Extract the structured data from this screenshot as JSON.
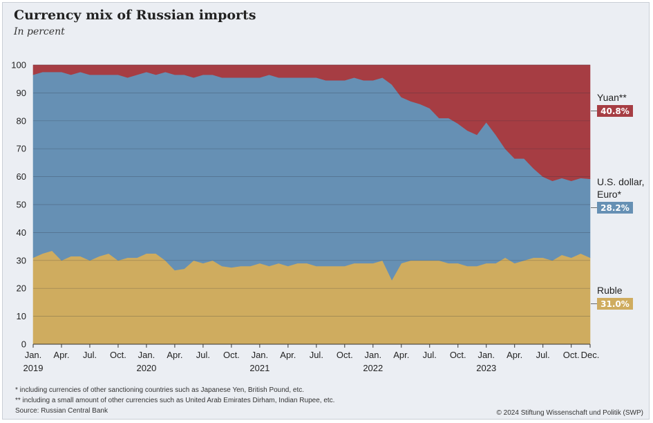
{
  "header": {
    "title": "Currency mix of Russian imports",
    "subtitle": "In percent"
  },
  "footer": {
    "note1": "*   including currencies of other sanctioning countries such as Japanese Yen, British Pound, etc.",
    "note2": "**  including a small amount of other currencies such as United Arab Emirates Dirham, Indian Rupee, etc.",
    "source": "Source: Russian Central Bank",
    "copyright": "© 2024 Stiftung Wissenschaft und Politik (SWP)"
  },
  "colors": {
    "ruble": "#cfac5f",
    "usd_euro": "#6690b4",
    "yuan": "#a63d43",
    "background": "#ebeef3"
  },
  "chart_data": {
    "type": "area",
    "stacked": true,
    "ylim": [
      0,
      100
    ],
    "yticks": [
      0,
      10,
      20,
      30,
      40,
      50,
      60,
      70,
      80,
      90,
      100
    ],
    "grid": true,
    "x_start": "2019-01",
    "x_end": "2023-12",
    "x_tick_labels": [
      {
        "month": "2019-01",
        "label": "Jan.",
        "year": "2019"
      },
      {
        "month": "2019-04",
        "label": "Apr."
      },
      {
        "month": "2019-07",
        "label": "Jul."
      },
      {
        "month": "2019-10",
        "label": "Oct."
      },
      {
        "month": "2020-01",
        "label": "Jan.",
        "year": "2020"
      },
      {
        "month": "2020-04",
        "label": "Apr."
      },
      {
        "month": "2020-07",
        "label": "Jul."
      },
      {
        "month": "2020-10",
        "label": "Oct."
      },
      {
        "month": "2021-01",
        "label": "Jan.",
        "year": "2021"
      },
      {
        "month": "2021-04",
        "label": "Apr."
      },
      {
        "month": "2021-07",
        "label": "Jul."
      },
      {
        "month": "2021-10",
        "label": "Oct."
      },
      {
        "month": "2022-01",
        "label": "Jan.",
        "year": "2022"
      },
      {
        "month": "2022-04",
        "label": "Apr."
      },
      {
        "month": "2022-07",
        "label": "Jul."
      },
      {
        "month": "2022-10",
        "label": "Oct."
      },
      {
        "month": "2023-01",
        "label": "Jan.",
        "year": "2023"
      },
      {
        "month": "2023-04",
        "label": "Apr."
      },
      {
        "month": "2023-07",
        "label": "Jul."
      },
      {
        "month": "2023-10",
        "label": "Oct."
      },
      {
        "month": "2023-12",
        "label": "Dec."
      }
    ],
    "series": [
      {
        "key": "ruble",
        "name": "Ruble",
        "end_label": "31.0%",
        "cumulative_top": [
          31,
          32.5,
          33.5,
          30,
          31.5,
          31.5,
          30,
          31.5,
          32.5,
          30,
          31,
          31,
          32.5,
          32.5,
          30,
          26.5,
          27,
          30,
          29,
          30,
          28,
          27.5,
          28,
          28,
          29,
          28,
          29,
          28,
          29,
          29,
          28,
          28,
          28,
          28,
          29,
          29,
          29,
          30,
          23,
          29,
          30,
          30,
          30,
          30,
          29,
          29,
          28,
          28,
          29,
          29,
          31,
          29,
          30,
          31,
          31,
          30,
          32,
          31,
          32.5,
          31
        ]
      },
      {
        "key": "usd_euro",
        "name": "U.S. dollar, Euro*",
        "name_lines": [
          "U.S. dollar,",
          "Euro*"
        ],
        "end_label": "28.2%",
        "cumulative_top": [
          96.5,
          97.5,
          97.5,
          97.5,
          96.5,
          97.5,
          96.5,
          96.5,
          96.5,
          96.5,
          95.5,
          96.5,
          97.5,
          96.5,
          97.5,
          96.5,
          96.5,
          95.5,
          96.5,
          96.5,
          95.5,
          95.5,
          95.5,
          95.5,
          95.5,
          96.5,
          95.5,
          95.5,
          95.5,
          95.5,
          95.5,
          94.5,
          94.5,
          94.5,
          95.5,
          94.5,
          94.5,
          95.5,
          93,
          88.5,
          87,
          86,
          84.5,
          81,
          81,
          79,
          76.5,
          75,
          79.5,
          75,
          70,
          66.5,
          66.5,
          63,
          60,
          58.5,
          59.5,
          58.5,
          59.5,
          59.2
        ]
      },
      {
        "key": "yuan",
        "name": "Yuan**",
        "end_label": "40.8%",
        "cumulative_top": [
          100,
          100,
          100,
          100,
          100,
          100,
          100,
          100,
          100,
          100,
          100,
          100,
          100,
          100,
          100,
          100,
          100,
          100,
          100,
          100,
          100,
          100,
          100,
          100,
          100,
          100,
          100,
          100,
          100,
          100,
          100,
          100,
          100,
          100,
          100,
          100,
          100,
          100,
          100,
          100,
          100,
          100,
          100,
          100,
          100,
          100,
          100,
          100,
          100,
          100,
          100,
          100,
          100,
          100,
          100,
          100,
          100,
          100,
          100,
          100
        ]
      }
    ]
  }
}
